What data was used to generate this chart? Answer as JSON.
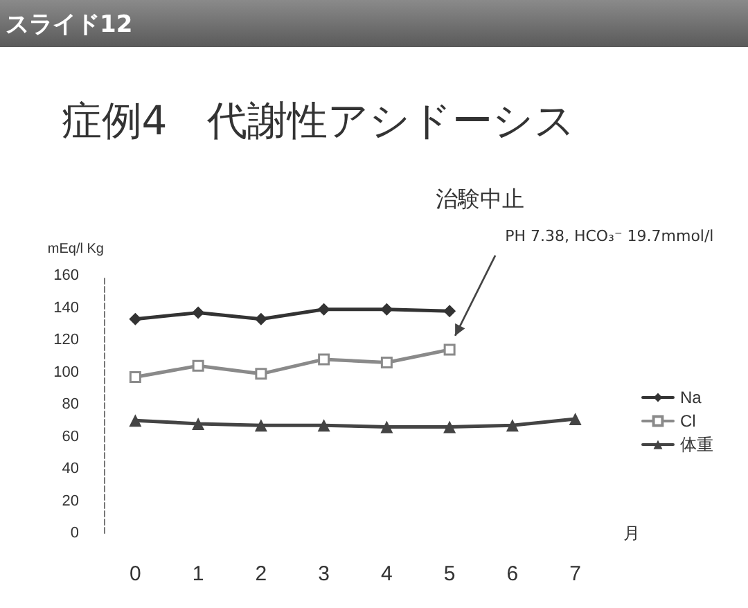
{
  "chart_data": {
    "type": "line",
    "title": "症例4　代謝性アシドーシス",
    "subtitle": "スライド12",
    "ylabel": "mEq/l Kg",
    "xlabel": "月",
    "categories": [
      "0",
      "1",
      "2",
      "3",
      "4",
      "5",
      "6",
      "7"
    ],
    "series": [
      {
        "name": "Na",
        "color": "#333333",
        "marker": "diamond",
        "values": [
          133,
          137,
          133,
          139,
          139,
          138,
          null,
          null
        ]
      },
      {
        "name": "Cl",
        "color": "#8a8a8a",
        "marker": "square",
        "values": [
          97,
          104,
          99,
          108,
          106,
          114,
          null,
          null
        ]
      },
      {
        "name": "体重",
        "color": "#444444",
        "marker": "triangle",
        "values": [
          70,
          68,
          67,
          67,
          66,
          66,
          67,
          71
        ]
      }
    ],
    "annotations": [
      "治験中止",
      "PH 7.38,  HCO₃⁻ 19.7mmol/l"
    ],
    "ylim": [
      0,
      160
    ],
    "yticks": [
      0,
      20,
      40,
      60,
      80,
      100,
      120,
      140,
      160
    ],
    "grid": false,
    "legend": "right"
  }
}
